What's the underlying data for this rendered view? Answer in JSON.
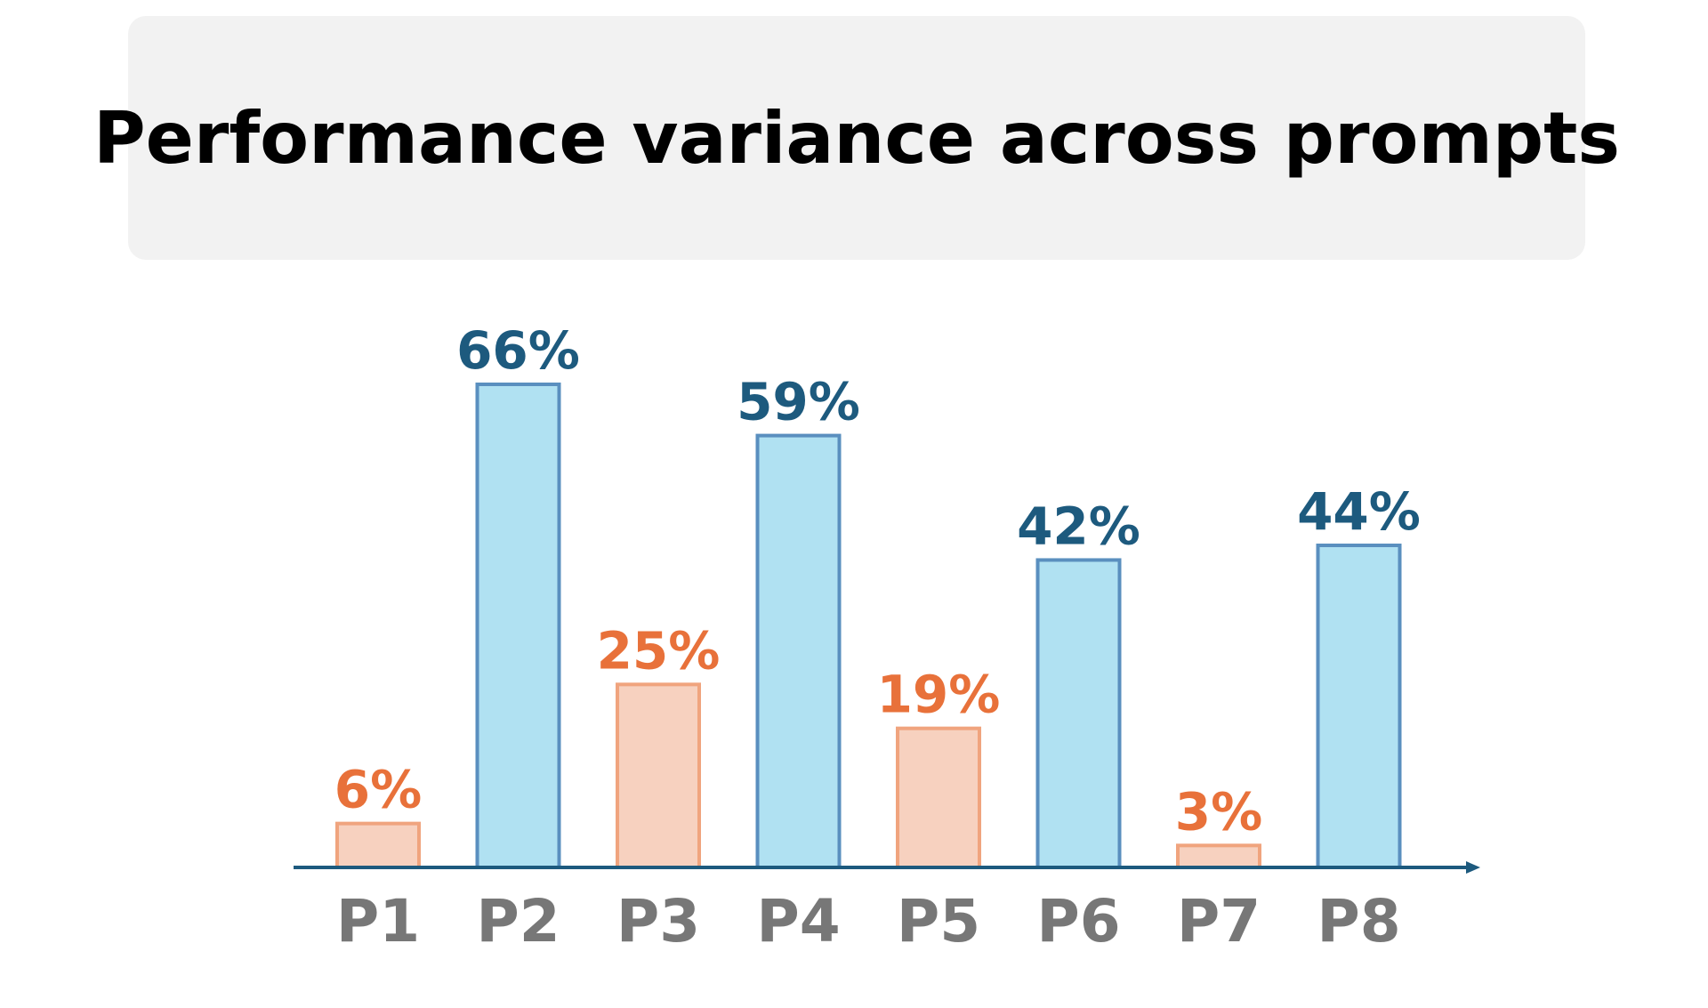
{
  "chart_data": {
    "type": "bar",
    "title": "Performance variance across prompts",
    "categories": [
      "P1",
      "P2",
      "P3",
      "P4",
      "P5",
      "P6",
      "P7",
      "P8"
    ],
    "values": [
      6,
      66,
      25,
      59,
      19,
      42,
      3,
      44
    ],
    "data_labels": [
      "6%",
      "66%",
      "25%",
      "59%",
      "19%",
      "42%",
      "3%",
      "44%"
    ],
    "xlabel": "",
    "ylabel": "",
    "ylim": [
      0,
      66
    ],
    "grid": false,
    "y_axis_visible": false,
    "high_threshold": 40,
    "colors": {
      "high_fill": "#b0e1f2",
      "high_stroke": "#5a8fbf",
      "high_label": "#1d5a7e",
      "low_fill": "#f7d1bf",
      "low_stroke": "#f0a47e",
      "low_label": "#e8713a",
      "axis": "#1d5a7e",
      "tick_label": "#777777"
    }
  }
}
